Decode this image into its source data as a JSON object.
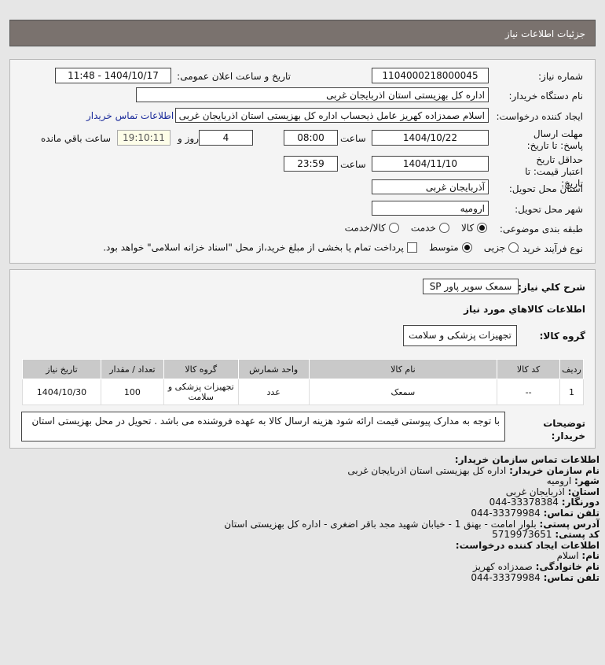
{
  "header": {
    "title": "جزئیات اطلاعات نیاز"
  },
  "form": {
    "need_number_label": "شماره نیاز:",
    "need_number": "1104000218000045",
    "announce_label": "تاریخ و ساعت اعلان عمومی:",
    "announce_value": "1404/10/17 - 11:48",
    "buyer_label": "نام دستگاه خریدار:",
    "buyer_value": "اداره کل بهزیستی استان اذربایجان غربی",
    "creator_label": "ایجاد کننده درخواست:",
    "creator_value": "اسلام صمدزاده کهریز عامل ذیحساب اداره کل بهزیستی استان اذربایجان غربی",
    "contact_link": "اطلاعات تماس خریدار",
    "deadline_label": "مهلت ارسال پاسخ: تا تاریخ:",
    "deadline_date": "1404/10/22",
    "time_label": "ساعت",
    "deadline_time": "08:00",
    "days": "4",
    "days_label": "روز و",
    "remaining": "19:10:11",
    "remaining_label": "ساعت باقي مانده",
    "validity_label": "حداقل تاریخ اعتبار قیمت: تا تاریخ:",
    "validity_date": "1404/11/10",
    "validity_time": "23:59",
    "province_label": "استان محل تحویل:",
    "province_value": "آذربایجان غربی",
    "city_label": "شهر محل تحویل:",
    "city_value": "ارومیه",
    "category_label": "طبقه بندی موضوعی:",
    "category_options": [
      {
        "label": "کالا",
        "selected": true
      },
      {
        "label": "خدمت",
        "selected": false
      },
      {
        "label": "کالا/خدمت",
        "selected": false
      }
    ],
    "process_label": "نوع فرآیند خرید :",
    "process_options": [
      {
        "label": "جزیی",
        "selected": false
      },
      {
        "label": "متوسط",
        "selected": true
      }
    ],
    "payment_note": "پرداخت تمام یا بخشی از مبلغ خرید،از محل \"اسناد خزانه اسلامی\" خواهد بود.",
    "payment_checked": false
  },
  "details": {
    "summary_label": "شرح کلي نیاز:",
    "summary_value": "سمعک سوپر پاور SP",
    "goods_heading": "اطلاعات کالاهاي مورد نیاز",
    "group_label": "گروه کالا:",
    "group_value": "تجهیزات پزشکی و سلامت",
    "table": {
      "headers": [
        "ردیف",
        "کد کالا",
        "نام کالا",
        "واحد شمارش",
        "گروه کالا",
        "تعداد / مقدار",
        "تاریخ نیاز"
      ],
      "rows": [
        [
          "1",
          "--",
          "سمعک",
          "عدد",
          "تجهیزات پزشکی و سلامت",
          "100",
          "1404/10/30"
        ]
      ]
    },
    "notes_label": "توضیحات خریدار:",
    "notes_value": "با توجه به مدارک پیوستی قیمت ارائه شود هزینه ارسال کالا به عهده فروشنده می باشد . تحویل در محل بهزیستی استان"
  },
  "contact": {
    "heading": "اطلاعات تماس سازمان خریدار:",
    "org_label": "نام سازمان خریدار:",
    "org": "اداره کل بهزیستی استان اذربایجان غربی",
    "city_label": "شهر:",
    "city": "ارومیه",
    "province_label": "استان:",
    "province": "اذربایجان غربی",
    "fax_label": "دورنگار:",
    "fax": "044-33378384",
    "phone_label": "تلفن تماس:",
    "phone": "044-33379984",
    "address_label": "آدرس پستی:",
    "address": "بلوار امامت - بهنق 1 - خیابان شهید مجد باقر اضغری - اداره کل بهزیستی استان",
    "postal_label": "کد پستی:",
    "postal": "5719973651",
    "creator_heading": "اطلاعات ایجاد کننده درخواست:",
    "name_label": "نام:",
    "name": "اسلام",
    "family_label": "نام خانوادگی:",
    "family": "صمدزاده کهریز",
    "cphone_label": "تلفن تماس:",
    "cphone": "044-33379984"
  }
}
